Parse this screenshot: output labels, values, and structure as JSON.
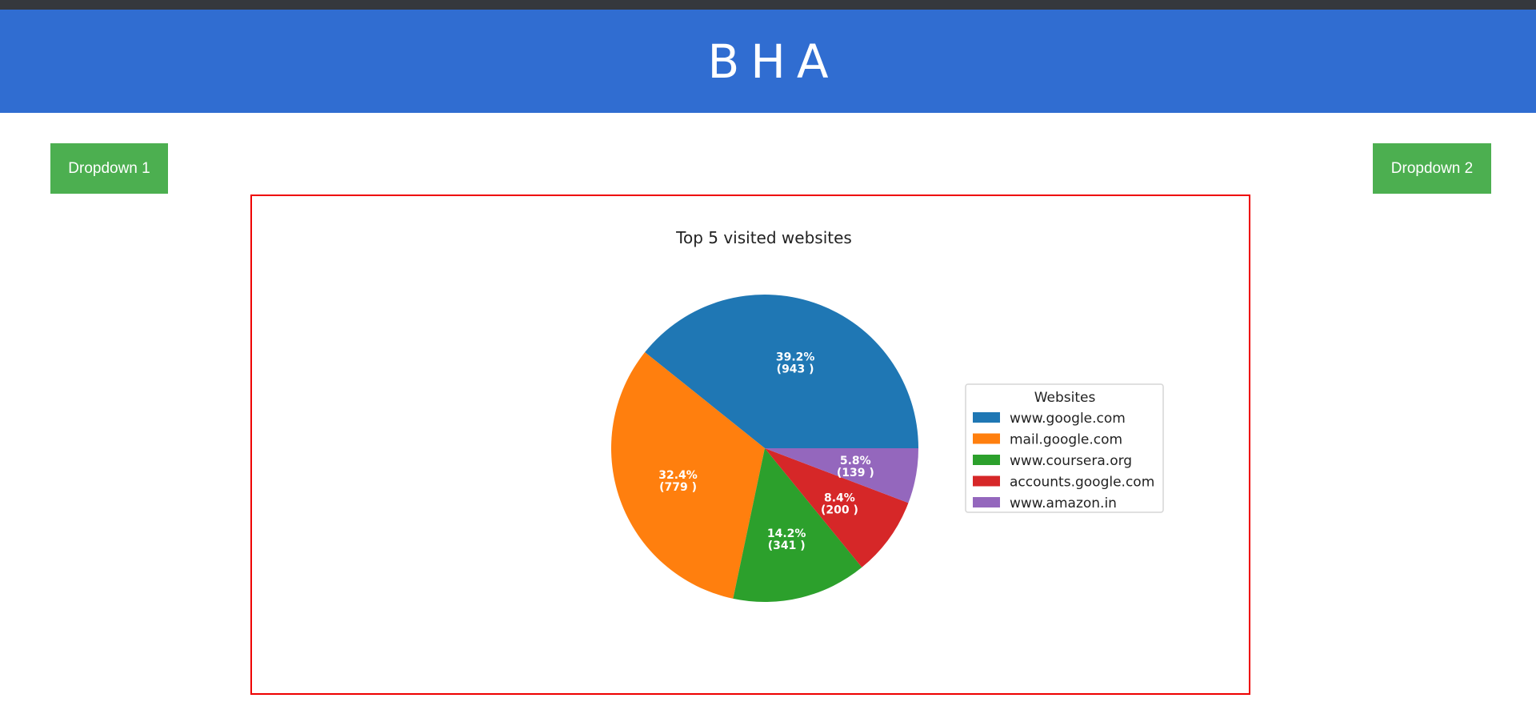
{
  "header": {
    "title": "BHA"
  },
  "controls": {
    "dropdown1_label": "Dropdown 1",
    "dropdown2_label": "Dropdown 2"
  },
  "colors": {
    "header_bg": "#306dd1",
    "button_bg": "#4caf50",
    "frame_border": "#ee0000"
  },
  "chart_data": {
    "type": "pie",
    "title": "Top 5 visited websites",
    "legend_title": "Websites",
    "legend_position": "right",
    "startangle": 0,
    "categories": [
      "www.google.com",
      "mail.google.com",
      "www.coursera.org",
      "accounts.google.com",
      "www.amazon.in"
    ],
    "values": [
      943,
      779,
      341,
      200,
      139
    ],
    "percent_labels": [
      "39.2%",
      "32.4%",
      "14.2%",
      "8.4%",
      "5.8%"
    ],
    "count_labels": [
      "(943 )",
      "(779 )",
      "(341 )",
      "(200 )",
      "(139 )"
    ],
    "colors": [
      "#1f77b4",
      "#ff7f0e",
      "#2ca02c",
      "#d62728",
      "#9467bd"
    ]
  }
}
